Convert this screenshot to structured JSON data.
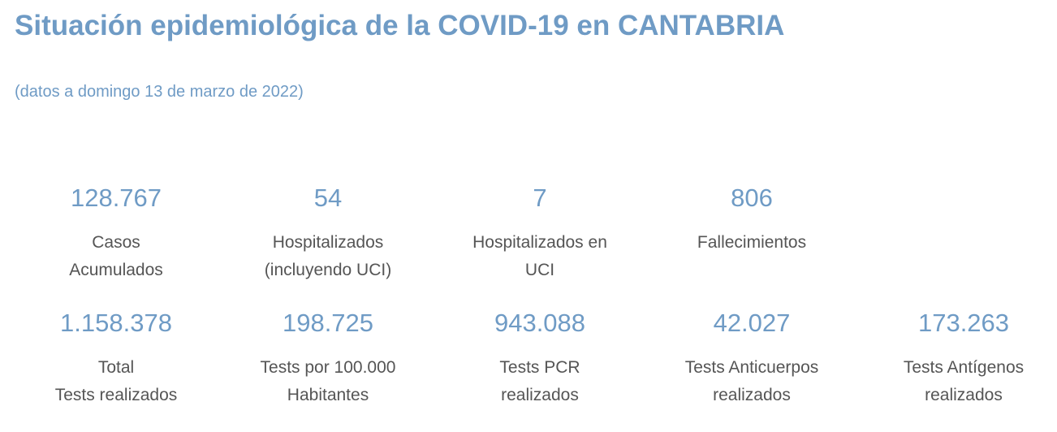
{
  "header": {
    "title": "Situación epidemiológica de la COVID-19 en CANTABRIA",
    "subtitle": "(datos a domingo 13 de marzo de 2022)"
  },
  "stats": [
    {
      "value": "128.767",
      "label": "Casos\nAcumulados"
    },
    {
      "value": "54",
      "label": "Hospitalizados\n(incluyendo UCI)"
    },
    {
      "value": "7",
      "label": "Hospitalizados en\nUCI"
    },
    {
      "value": "806",
      "label": "Fallecimientos"
    },
    {
      "value": "1.158.378",
      "label": "Total\nTests realizados"
    },
    {
      "value": "198.725",
      "label": "Tests por 100.000\nHabitantes"
    },
    {
      "value": "943.088",
      "label": "Tests PCR\nrealizados"
    },
    {
      "value": "42.027",
      "label": "Tests Anticuerpos\nrealizados"
    },
    {
      "value": "173.263",
      "label": "Tests Antígenos\nrealizados"
    }
  ],
  "colors": {
    "accent": "#6f9bc5",
    "label_text": "#555555",
    "background": "#ffffff"
  }
}
